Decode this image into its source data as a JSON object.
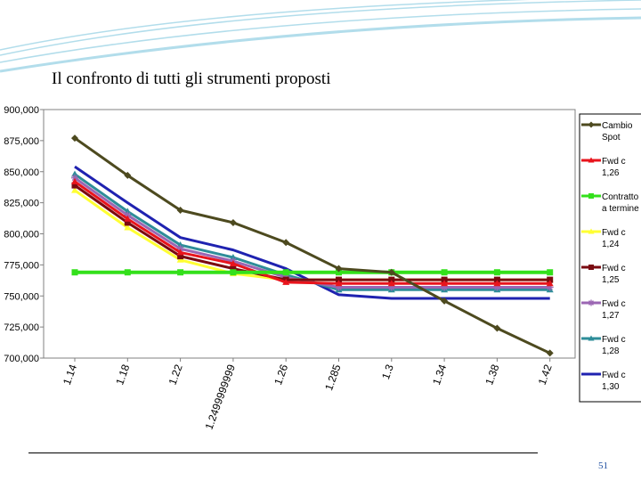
{
  "slide": {
    "title": "Il confronto di tutti gli strumenti proposti",
    "page_number": "51"
  },
  "colors": {
    "swoosh": "#9fd4e6",
    "plot_border": "#808080"
  },
  "chart_data": {
    "type": "line",
    "title": "",
    "xlabel": "",
    "ylabel": "",
    "ylim": [
      700000,
      900000
    ],
    "yticks": [
      "900,000",
      "875,000",
      "850,000",
      "825,000",
      "800,000",
      "775,000",
      "750,000",
      "725,000",
      "700,000"
    ],
    "categories": [
      "1.14",
      "1.18",
      "1.22",
      "1.2499999999",
      "1.26",
      "1.285",
      "1.3",
      "1.34",
      "1.38",
      "1.42"
    ],
    "grid": false,
    "legend_position": "right",
    "series": [
      {
        "name": "Cambio Spot",
        "color": "#4d4a1f",
        "marker": "diamond",
        "values": [
          877000,
          847000,
          819000,
          809000,
          793000,
          772000,
          769000,
          746000,
          724000,
          704000
        ]
      },
      {
        "name": "Fwd c 1,26",
        "color": "#e8141c",
        "marker": "triangle",
        "values": [
          842000,
          812000,
          785000,
          776000,
          761000,
          760000,
          760000,
          760000,
          760000,
          760000
        ]
      },
      {
        "name": "Contratto a termine",
        "color": "#33e01b",
        "marker": "square",
        "values": [
          769000,
          769000,
          769000,
          769000,
          769000,
          769000,
          769000,
          769000,
          769000,
          769000
        ]
      },
      {
        "name": "Fwd c 1,24",
        "color": "#ffff33",
        "marker": "triangle",
        "values": [
          835000,
          805000,
          779000,
          768000,
          763000,
          763000,
          763000,
          763000,
          763000,
          763000
        ]
      },
      {
        "name": "Fwd c 1,25",
        "color": "#7a0a10",
        "marker": "square",
        "values": [
          839000,
          809000,
          782000,
          772000,
          763000,
          763000,
          763000,
          763000,
          763000,
          763000
        ]
      },
      {
        "name": "Fwd c 1,27",
        "color": "#9b66b3",
        "marker": "star",
        "values": [
          845000,
          815000,
          788000,
          778000,
          765000,
          757000,
          757000,
          757000,
          757000,
          757000
        ]
      },
      {
        "name": "Fwd c 1,28",
        "color": "#2e8d99",
        "marker": "triangle",
        "values": [
          848000,
          818000,
          791000,
          781000,
          767000,
          755000,
          755000,
          755000,
          755000,
          755000
        ]
      },
      {
        "name": "Fwd c 1,30",
        "color": "#1f22b0",
        "marker": "none",
        "values": [
          854000,
          825000,
          797000,
          787000,
          772000,
          751000,
          748000,
          748000,
          748000,
          748000
        ]
      }
    ]
  }
}
